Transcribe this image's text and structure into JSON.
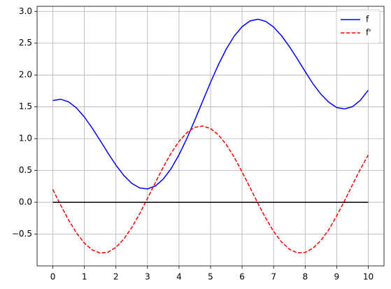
{
  "chart_data": {
    "type": "line",
    "x": [
      0,
      0.25,
      0.5,
      0.75,
      1,
      1.25,
      1.5,
      1.75,
      2,
      2.25,
      2.5,
      2.75,
      3,
      3.25,
      3.5,
      3.75,
      4,
      4.25,
      4.5,
      4.75,
      5,
      5.25,
      5.5,
      5.75,
      6,
      6.25,
      6.5,
      6.75,
      7,
      7.25,
      7.5,
      7.75,
      8,
      8.25,
      8.5,
      8.75,
      9,
      9.25,
      9.5,
      9.75,
      10
    ],
    "series": [
      {
        "name": "f",
        "color": "#0000ff",
        "dash": false,
        "values": [
          1.6,
          1.619,
          1.578,
          1.482,
          1.34,
          1.165,
          0.971,
          0.772,
          0.584,
          0.422,
          0.299,
          0.226,
          0.21,
          0.256,
          0.364,
          0.529,
          0.746,
          1.004,
          1.289,
          1.588,
          1.884,
          2.162,
          2.409,
          2.611,
          2.76,
          2.849,
          2.877,
          2.843,
          2.754,
          2.618,
          2.447,
          2.255,
          2.055,
          1.861,
          1.698,
          1.573,
          1.489,
          1.466,
          1.503,
          1.603,
          1.761
        ]
      },
      {
        "name": "f'",
        "color": "#ff0000",
        "dash": true,
        "values": [
          0.2,
          -0.047,
          -0.279,
          -0.482,
          -0.642,
          -0.749,
          -0.798,
          -0.784,
          -0.709,
          -0.578,
          -0.399,
          -0.182,
          0.059,
          0.308,
          0.551,
          0.772,
          0.957,
          1.095,
          1.178,
          1.199,
          1.159,
          1.059,
          0.906,
          0.708,
          0.479,
          0.233,
          -0.015,
          -0.25,
          -0.457,
          -0.623,
          -0.738,
          -0.795,
          -0.789,
          -0.721,
          -0.599,
          -0.43,
          -0.212,
          0.023,
          0.275,
          0.52,
          0.744
        ]
      },
      {
        "color": "#000000",
        "dash": false,
        "x": [
          0,
          10
        ],
        "values": [
          0,
          0
        ]
      }
    ],
    "xlim": [
      -0.5,
      10.5
    ],
    "ylim": [
      -1.0,
      3.08
    ],
    "xticks": [
      0,
      1,
      2,
      3,
      4,
      5,
      6,
      7,
      8,
      9,
      10
    ],
    "yticks": [
      {
        "value": -0.5,
        "label": "−0.5"
      },
      {
        "value": 0,
        "label": "0.0"
      },
      {
        "value": 0.5,
        "label": "0.5"
      },
      {
        "value": 1,
        "label": "1.0"
      },
      {
        "value": 1.5,
        "label": "1.5"
      },
      {
        "value": 2,
        "label": "2.0"
      },
      {
        "value": 2.5,
        "label": "2.5"
      },
      {
        "value": 3,
        "label": "3.0"
      }
    ],
    "grid": true,
    "legend": "upper right"
  }
}
